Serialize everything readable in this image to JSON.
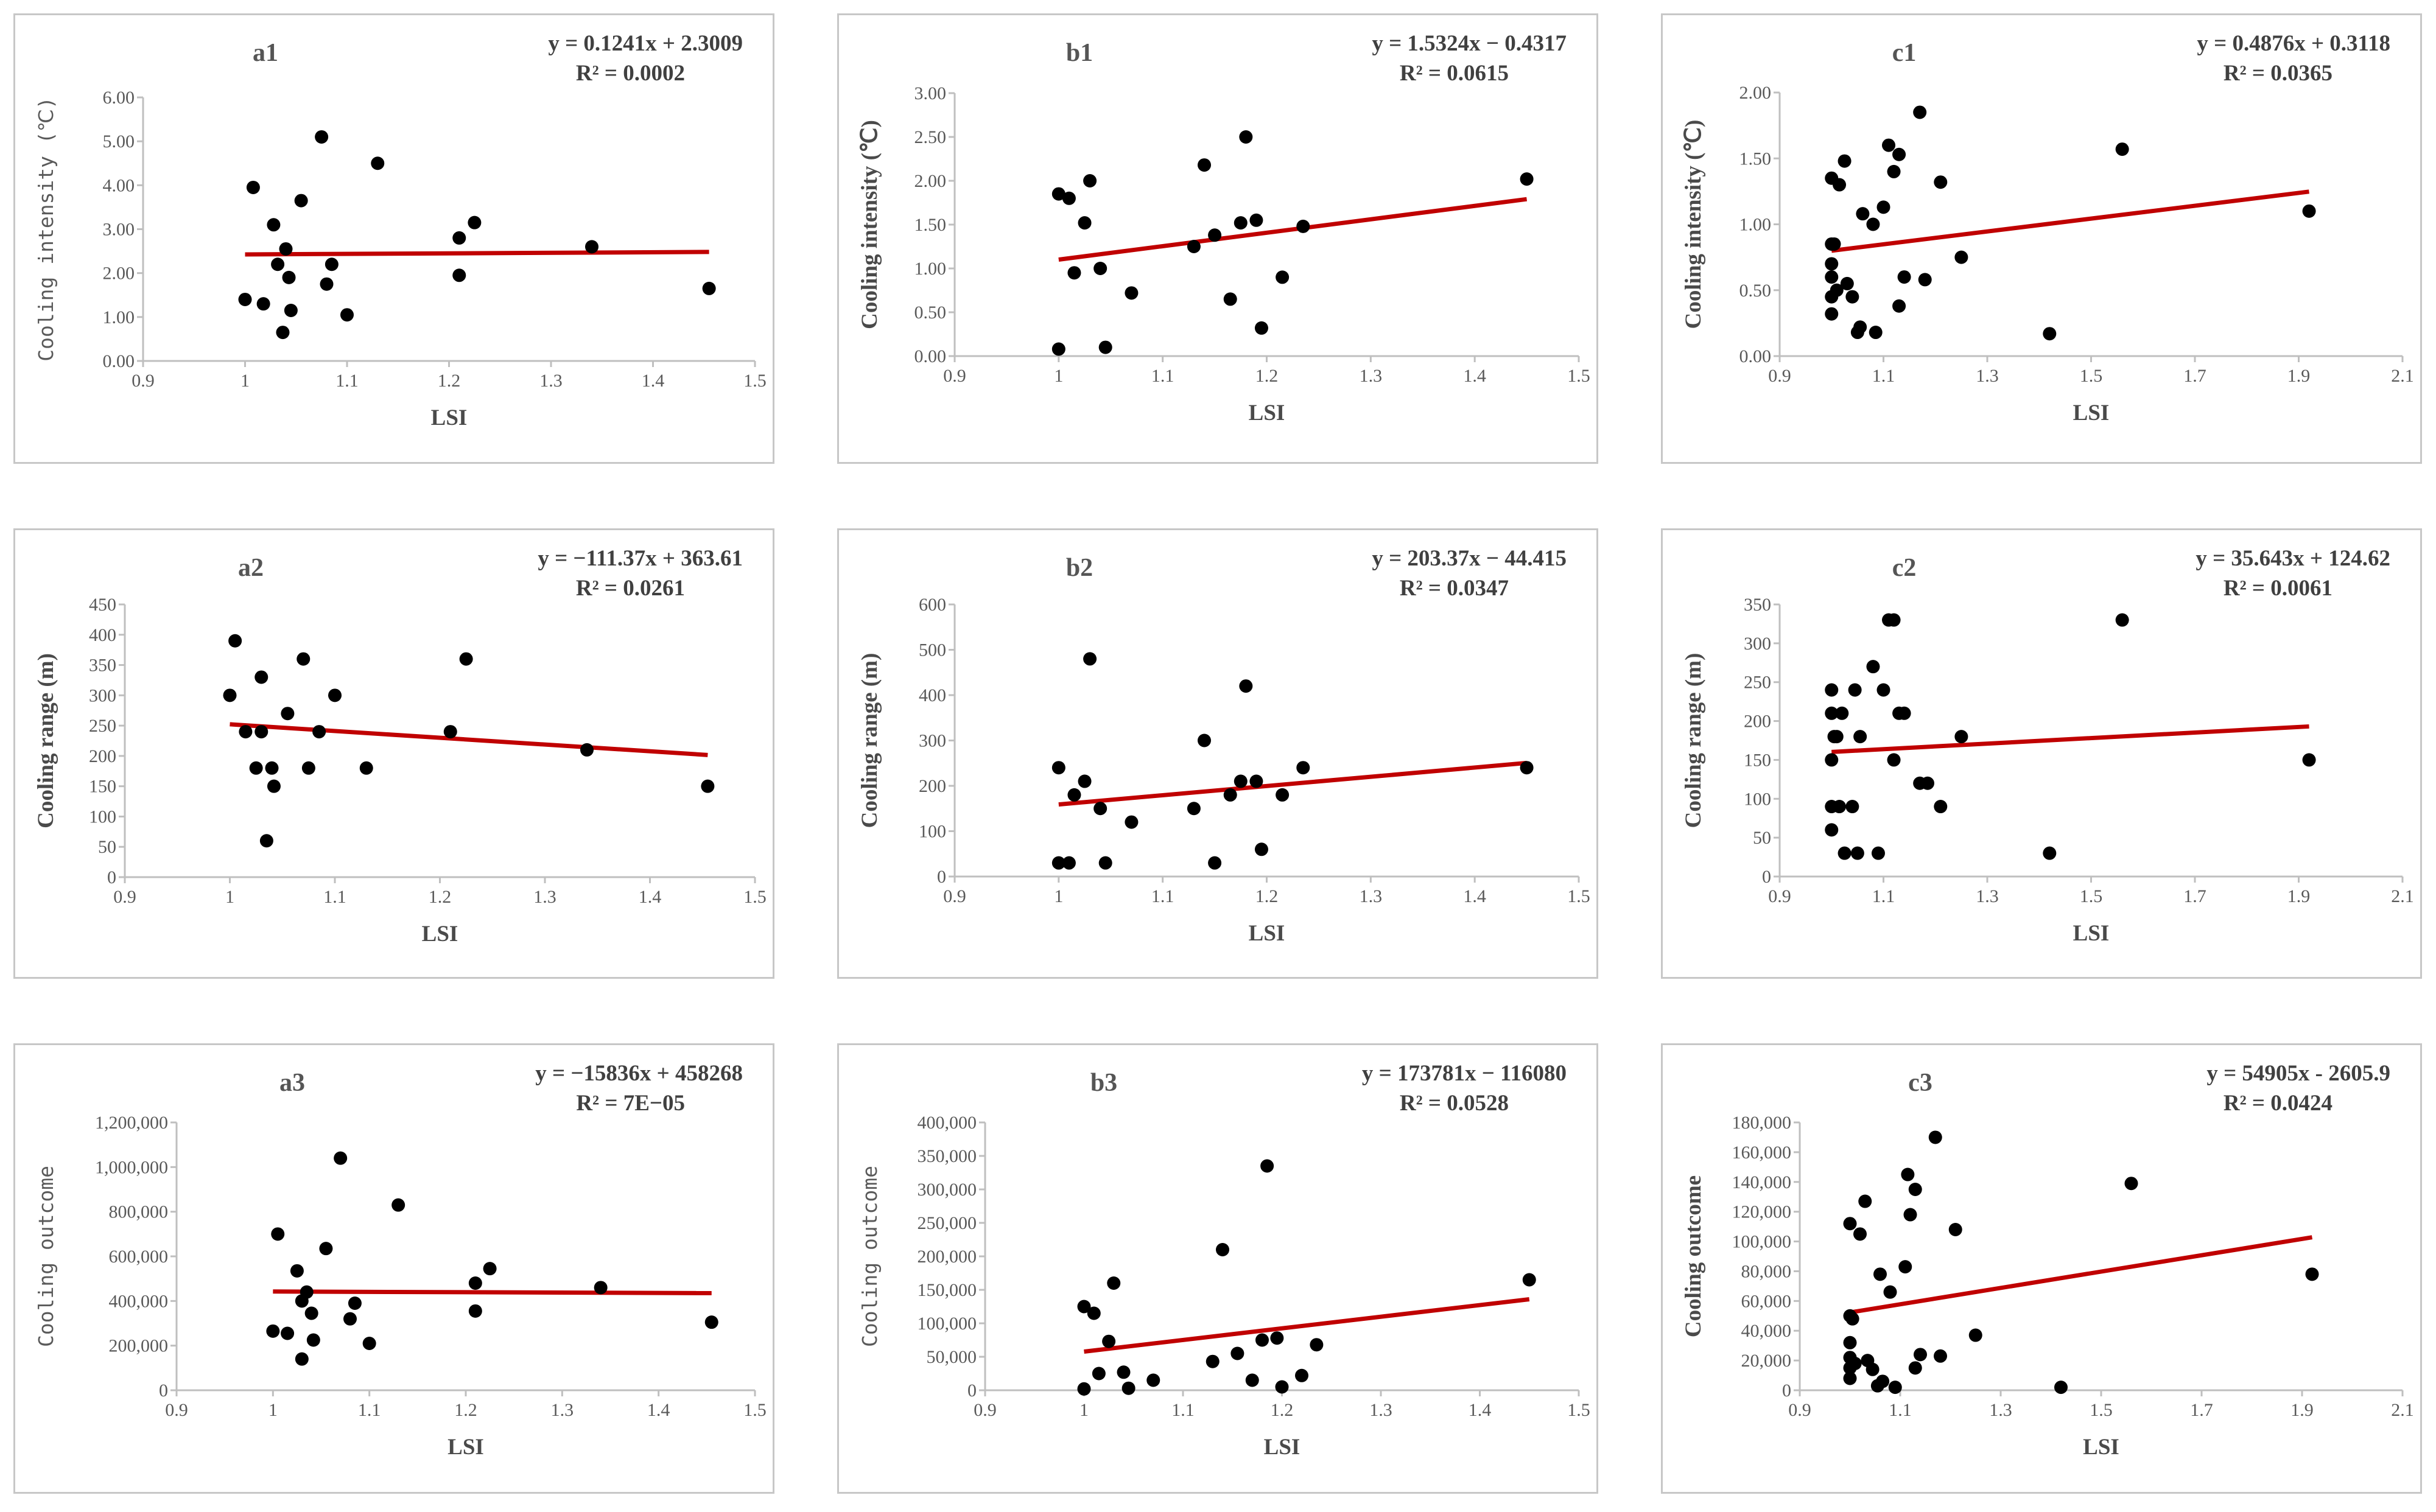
{
  "chart_data": [
    {
      "id": "a1",
      "type": "scatter",
      "title": "a1",
      "equation": "y = 0.1241x + 2.3009",
      "r2": "R² = 0.0002",
      "xlabel": "LSI",
      "ylabel": "Cooling intensity (℃)",
      "ylabel_style": "mono",
      "xlim": [
        0.9,
        1.5
      ],
      "ylim": [
        0,
        6
      ],
      "xticks": [
        "0.9",
        "1",
        "1.1",
        "1.2",
        "1.3",
        "1.4",
        "1.5"
      ],
      "yticks": [
        "0.00",
        "1.00",
        "2.00",
        "3.00",
        "4.00",
        "5.00",
        "6.00"
      ],
      "trend": {
        "slope": 0.1241,
        "intercept": 2.3009,
        "x0": 1.0,
        "x1": 1.455
      },
      "points": [
        [
          1.0,
          1.4
        ],
        [
          1.008,
          3.95
        ],
        [
          1.018,
          1.3
        ],
        [
          1.028,
          3.1
        ],
        [
          1.032,
          2.2
        ],
        [
          1.037,
          0.65
        ],
        [
          1.04,
          2.55
        ],
        [
          1.043,
          1.9
        ],
        [
          1.045,
          1.15
        ],
        [
          1.055,
          3.65
        ],
        [
          1.075,
          5.1
        ],
        [
          1.08,
          1.75
        ],
        [
          1.085,
          2.2
        ],
        [
          1.1,
          1.05
        ],
        [
          1.13,
          4.5
        ],
        [
          1.21,
          2.8
        ],
        [
          1.21,
          1.95
        ],
        [
          1.225,
          3.15
        ],
        [
          1.34,
          2.6
        ],
        [
          1.455,
          1.65
        ]
      ]
    },
    {
      "id": "b1",
      "type": "scatter",
      "title": "b1",
      "equation": "y = 1.5324x − 0.4317",
      "r2": "R² = 0.0615",
      "xlabel": "LSI",
      "ylabel": "Cooling intensity (℃)",
      "ylabel_style": "bold",
      "xlim": [
        0.9,
        1.5
      ],
      "ylim": [
        0,
        3
      ],
      "xticks": [
        "0.9",
        "1",
        "1.1",
        "1.2",
        "1.3",
        "1.4",
        "1.5"
      ],
      "yticks": [
        "0.00",
        "0.50",
        "1.00",
        "1.50",
        "2.00",
        "2.50",
        "3.00"
      ],
      "trend": {
        "slope": 1.5324,
        "intercept": -0.4317,
        "x0": 1.0,
        "x1": 1.45
      },
      "points": [
        [
          1.0,
          1.85
        ],
        [
          1.0,
          0.08
        ],
        [
          1.01,
          1.8
        ],
        [
          1.015,
          0.95
        ],
        [
          1.025,
          1.52
        ],
        [
          1.03,
          2.0
        ],
        [
          1.04,
          1.0
        ],
        [
          1.045,
          0.1
        ],
        [
          1.07,
          0.72
        ],
        [
          1.13,
          1.25
        ],
        [
          1.14,
          2.18
        ],
        [
          1.15,
          1.38
        ],
        [
          1.165,
          0.65
        ],
        [
          1.175,
          1.52
        ],
        [
          1.18,
          2.5
        ],
        [
          1.19,
          1.55
        ],
        [
          1.195,
          0.32
        ],
        [
          1.215,
          0.9
        ],
        [
          1.235,
          1.48
        ],
        [
          1.45,
          2.02
        ]
      ]
    },
    {
      "id": "c1",
      "type": "scatter",
      "title": "c1",
      "equation": "y = 0.4876x + 0.3118",
      "r2": "R² = 0.0365",
      "xlabel": "LSI",
      "ylabel": "Cooling intensity (℃)",
      "ylabel_style": "bold",
      "xlim": [
        0.9,
        2.1
      ],
      "ylim": [
        0,
        2
      ],
      "xticks": [
        "0.9",
        "1.1",
        "1.3",
        "1.5",
        "1.7",
        "1.9",
        "2.1"
      ],
      "yticks": [
        "0.00",
        "0.50",
        "1.00",
        "1.50",
        "2.00"
      ],
      "trend": {
        "slope": 0.4876,
        "intercept": 0.3118,
        "x0": 1.0,
        "x1": 1.92
      },
      "points": [
        [
          1.0,
          1.35
        ],
        [
          1.0,
          0.85
        ],
        [
          1.0,
          0.7
        ],
        [
          1.0,
          0.6
        ],
        [
          1.0,
          0.45
        ],
        [
          1.0,
          0.32
        ],
        [
          1.005,
          0.85
        ],
        [
          1.01,
          0.5
        ],
        [
          1.015,
          1.3
        ],
        [
          1.025,
          1.48
        ],
        [
          1.03,
          0.55
        ],
        [
          1.04,
          0.45
        ],
        [
          1.05,
          0.18
        ],
        [
          1.055,
          0.22
        ],
        [
          1.06,
          1.08
        ],
        [
          1.08,
          1.0
        ],
        [
          1.085,
          0.18
        ],
        [
          1.1,
          1.13
        ],
        [
          1.11,
          1.6
        ],
        [
          1.12,
          1.4
        ],
        [
          1.13,
          1.53
        ],
        [
          1.13,
          0.38
        ],
        [
          1.14,
          0.6
        ],
        [
          1.17,
          1.85
        ],
        [
          1.18,
          0.58
        ],
        [
          1.21,
          1.32
        ],
        [
          1.25,
          0.75
        ],
        [
          1.42,
          0.17
        ],
        [
          1.56,
          1.57
        ],
        [
          1.92,
          1.1
        ]
      ]
    },
    {
      "id": "a2",
      "type": "scatter",
      "title": "a2",
      "equation": "y = −111.37x + 363.61",
      "r2": "R² = 0.0261",
      "xlabel": "LSI",
      "ylabel": "Cooling range (m)",
      "ylabel_style": "bold",
      "xlim": [
        0.9,
        1.5
      ],
      "ylim": [
        0,
        450
      ],
      "xticks": [
        "0.9",
        "1",
        "1.1",
        "1.2",
        "1.3",
        "1.4",
        "1.5"
      ],
      "yticks": [
        "0",
        "50",
        "100",
        "150",
        "200",
        "250",
        "300",
        "350",
        "400",
        "450"
      ],
      "trend": {
        "slope": -111.37,
        "intercept": 363.61,
        "x0": 1.0,
        "x1": 1.455
      },
      "points": [
        [
          1.0,
          300
        ],
        [
          1.005,
          390
        ],
        [
          1.015,
          240
        ],
        [
          1.025,
          180
        ],
        [
          1.03,
          330
        ],
        [
          1.03,
          240
        ],
        [
          1.035,
          60
        ],
        [
          1.04,
          180
        ],
        [
          1.042,
          150
        ],
        [
          1.055,
          270
        ],
        [
          1.07,
          360
        ],
        [
          1.075,
          180
        ],
        [
          1.085,
          240
        ],
        [
          1.1,
          300
        ],
        [
          1.13,
          180
        ],
        [
          1.21,
          240
        ],
        [
          1.225,
          360
        ],
        [
          1.34,
          210
        ],
        [
          1.455,
          150
        ]
      ]
    },
    {
      "id": "b2",
      "type": "scatter",
      "title": "b2",
      "equation": "y = 203.37x − 44.415",
      "r2": "R² = 0.0347",
      "xlabel": "LSI",
      "ylabel": "Cooling range (m)",
      "ylabel_style": "bold",
      "xlim": [
        0.9,
        1.5
      ],
      "ylim": [
        0,
        600
      ],
      "xticks": [
        "0.9",
        "1",
        "1.1",
        "1.2",
        "1.3",
        "1.4",
        "1.5"
      ],
      "yticks": [
        "0",
        "100",
        "200",
        "300",
        "400",
        "500",
        "600"
      ],
      "trend": {
        "slope": 203.37,
        "intercept": -44.415,
        "x0": 1.0,
        "x1": 1.45
      },
      "points": [
        [
          1.0,
          240
        ],
        [
          1.0,
          30
        ],
        [
          1.01,
          30
        ],
        [
          1.015,
          180
        ],
        [
          1.025,
          210
        ],
        [
          1.03,
          480
        ],
        [
          1.04,
          150
        ],
        [
          1.045,
          30
        ],
        [
          1.07,
          120
        ],
        [
          1.13,
          150
        ],
        [
          1.14,
          300
        ],
        [
          1.15,
          30
        ],
        [
          1.165,
          180
        ],
        [
          1.175,
          210
        ],
        [
          1.18,
          420
        ],
        [
          1.19,
          210
        ],
        [
          1.195,
          60
        ],
        [
          1.215,
          180
        ],
        [
          1.235,
          240
        ],
        [
          1.45,
          240
        ]
      ]
    },
    {
      "id": "c2",
      "type": "scatter",
      "title": "c2",
      "equation": "y = 35.643x + 124.62",
      "r2": "R² = 0.0061",
      "xlabel": "LSI",
      "ylabel": "Cooling range (m)",
      "ylabel_style": "bold",
      "xlim": [
        0.9,
        2.1
      ],
      "ylim": [
        0,
        350
      ],
      "xticks": [
        "0.9",
        "1.1",
        "1.3",
        "1.5",
        "1.7",
        "1.9",
        "2.1"
      ],
      "yticks": [
        "0",
        "50",
        "100",
        "150",
        "200",
        "250",
        "300",
        "350"
      ],
      "trend": {
        "slope": 35.643,
        "intercept": 124.62,
        "x0": 1.0,
        "x1": 1.92
      },
      "points": [
        [
          1.0,
          240
        ],
        [
          1.0,
          210
        ],
        [
          1.0,
          150
        ],
        [
          1.0,
          90
        ],
        [
          1.0,
          60
        ],
        [
          1.005,
          180
        ],
        [
          1.01,
          180
        ],
        [
          1.015,
          90
        ],
        [
          1.02,
          210
        ],
        [
          1.025,
          30
        ],
        [
          1.04,
          90
        ],
        [
          1.045,
          240
        ],
        [
          1.05,
          30
        ],
        [
          1.055,
          180
        ],
        [
          1.08,
          270
        ],
        [
          1.09,
          30
        ],
        [
          1.1,
          240
        ],
        [
          1.11,
          330
        ],
        [
          1.12,
          330
        ],
        [
          1.12,
          150
        ],
        [
          1.13,
          210
        ],
        [
          1.14,
          210
        ],
        [
          1.17,
          120
        ],
        [
          1.185,
          120
        ],
        [
          1.21,
          90
        ],
        [
          1.25,
          180
        ],
        [
          1.42,
          30
        ],
        [
          1.56,
          330
        ],
        [
          1.92,
          150
        ]
      ]
    },
    {
      "id": "a3",
      "type": "scatter",
      "title": "a3",
      "equation": "y = −15836x + 458268",
      "r2": "R² = 7E−05",
      "xlabel": "LSI",
      "ylabel": "Cooling outcome",
      "ylabel_style": "mono",
      "xlim": [
        0.9,
        1.5
      ],
      "ylim": [
        0,
        1200000
      ],
      "xticks": [
        "0.9",
        "1",
        "1.1",
        "1.2",
        "1.3",
        "1.4",
        "1.5"
      ],
      "yticks": [
        "0",
        "200,000",
        "400,000",
        "600,000",
        "800,000",
        "1,000,000",
        "1,200,000"
      ],
      "trend": {
        "slope": -15836,
        "intercept": 458268,
        "x0": 1.0,
        "x1": 1.455
      },
      "points": [
        [
          1.0,
          265000
        ],
        [
          1.005,
          700000
        ],
        [
          1.015,
          255000
        ],
        [
          1.025,
          535000
        ],
        [
          1.03,
          400000
        ],
        [
          1.03,
          140000
        ],
        [
          1.035,
          440000
        ],
        [
          1.04,
          345000
        ],
        [
          1.042,
          225000
        ],
        [
          1.055,
          635000
        ],
        [
          1.07,
          1040000
        ],
        [
          1.08,
          320000
        ],
        [
          1.085,
          390000
        ],
        [
          1.1,
          210000
        ],
        [
          1.13,
          830000
        ],
        [
          1.21,
          480000
        ],
        [
          1.21,
          355000
        ],
        [
          1.225,
          545000
        ],
        [
          1.34,
          460000
        ],
        [
          1.455,
          305000
        ]
      ]
    },
    {
      "id": "b3",
      "type": "scatter",
      "title": "b3",
      "equation": "y = 173781x − 116080",
      "r2": "R² = 0.0528",
      "xlabel": "LSI",
      "ylabel": "Cooling outcome",
      "ylabel_style": "mono",
      "xlim": [
        0.9,
        1.5
      ],
      "ylim": [
        0,
        400000
      ],
      "xticks": [
        "0.9",
        "1",
        "1.1",
        "1.2",
        "1.3",
        "1.4",
        "1.5"
      ],
      "yticks": [
        "0",
        "50,000",
        "100,000",
        "150,000",
        "200,000",
        "250,000",
        "300,000",
        "350,000",
        "400,000"
      ],
      "trend": {
        "slope": 173781,
        "intercept": -116080,
        "x0": 1.0,
        "x1": 1.45
      },
      "points": [
        [
          1.0,
          125000
        ],
        [
          1.0,
          2000
        ],
        [
          1.01,
          115000
        ],
        [
          1.015,
          25000
        ],
        [
          1.025,
          73000
        ],
        [
          1.03,
          160000
        ],
        [
          1.04,
          27000
        ],
        [
          1.045,
          3000
        ],
        [
          1.07,
          15000
        ],
        [
          1.13,
          43000
        ],
        [
          1.14,
          210000
        ],
        [
          1.155,
          55000
        ],
        [
          1.17,
          15000
        ],
        [
          1.18,
          75000
        ],
        [
          1.185,
          335000
        ],
        [
          1.195,
          78000
        ],
        [
          1.2,
          5000
        ],
        [
          1.22,
          22000
        ],
        [
          1.235,
          68000
        ],
        [
          1.45,
          165000
        ]
      ]
    },
    {
      "id": "c3",
      "type": "scatter",
      "title": "c3",
      "equation": "y = 54905x - 2605.9",
      "r2": "R² = 0.0424",
      "xlabel": "LSI",
      "ylabel": "Cooling outcome",
      "ylabel_style": "bold",
      "xlim": [
        0.9,
        2.1
      ],
      "ylim": [
        0,
        180000
      ],
      "xticks": [
        "0.9",
        "1.1",
        "1.3",
        "1.5",
        "1.7",
        "1.9",
        "2.1"
      ],
      "yticks": [
        "0",
        "20,000",
        "40,000",
        "60,000",
        "80,000",
        "100,000",
        "120,000",
        "140,000",
        "160,000",
        "180,000"
      ],
      "trend": {
        "slope": 54905,
        "intercept": -2605.9,
        "x0": 1.0,
        "x1": 1.92
      },
      "points": [
        [
          1.0,
          112000
        ],
        [
          1.0,
          50000
        ],
        [
          1.0,
          32000
        ],
        [
          1.0,
          22000
        ],
        [
          1.0,
          15000
        ],
        [
          1.0,
          8000
        ],
        [
          1.005,
          48000
        ],
        [
          1.01,
          18000
        ],
        [
          1.02,
          105000
        ],
        [
          1.03,
          127000
        ],
        [
          1.035,
          20000
        ],
        [
          1.045,
          14000
        ],
        [
          1.055,
          3000
        ],
        [
          1.06,
          78000
        ],
        [
          1.065,
          6000
        ],
        [
          1.08,
          66000
        ],
        [
          1.09,
          2000
        ],
        [
          1.11,
          83000
        ],
        [
          1.115,
          145000
        ],
        [
          1.12,
          118000
        ],
        [
          1.13,
          135000
        ],
        [
          1.13,
          15000
        ],
        [
          1.14,
          24000
        ],
        [
          1.17,
          170000
        ],
        [
          1.18,
          23000
        ],
        [
          1.21,
          108000
        ],
        [
          1.25,
          37000
        ],
        [
          1.42,
          2000
        ],
        [
          1.56,
          139000
        ],
        [
          1.92,
          78000
        ]
      ]
    }
  ]
}
